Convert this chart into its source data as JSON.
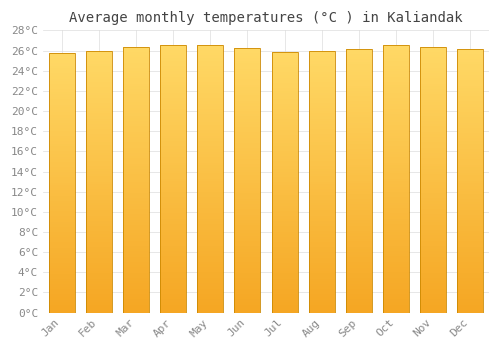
{
  "title": "Average monthly temperatures (°C ) in Kaliandak",
  "months": [
    "Jan",
    "Feb",
    "Mar",
    "Apr",
    "May",
    "Jun",
    "Jul",
    "Aug",
    "Sep",
    "Oct",
    "Nov",
    "Dec"
  ],
  "values": [
    25.8,
    26.0,
    26.4,
    26.6,
    26.6,
    26.3,
    25.9,
    26.0,
    26.2,
    26.6,
    26.4,
    26.2
  ],
  "ylim": [
    0,
    28
  ],
  "yticks": [
    0,
    2,
    4,
    6,
    8,
    10,
    12,
    14,
    16,
    18,
    20,
    22,
    24,
    26,
    28
  ],
  "bar_color_bottom": "#F5A623",
  "bar_color_top": "#FFD966",
  "bar_edge_color": "#CC8800",
  "background_color": "#FFFFFF",
  "grid_color": "#DDDDDD",
  "title_fontsize": 10,
  "tick_fontsize": 8,
  "bar_width": 0.7
}
